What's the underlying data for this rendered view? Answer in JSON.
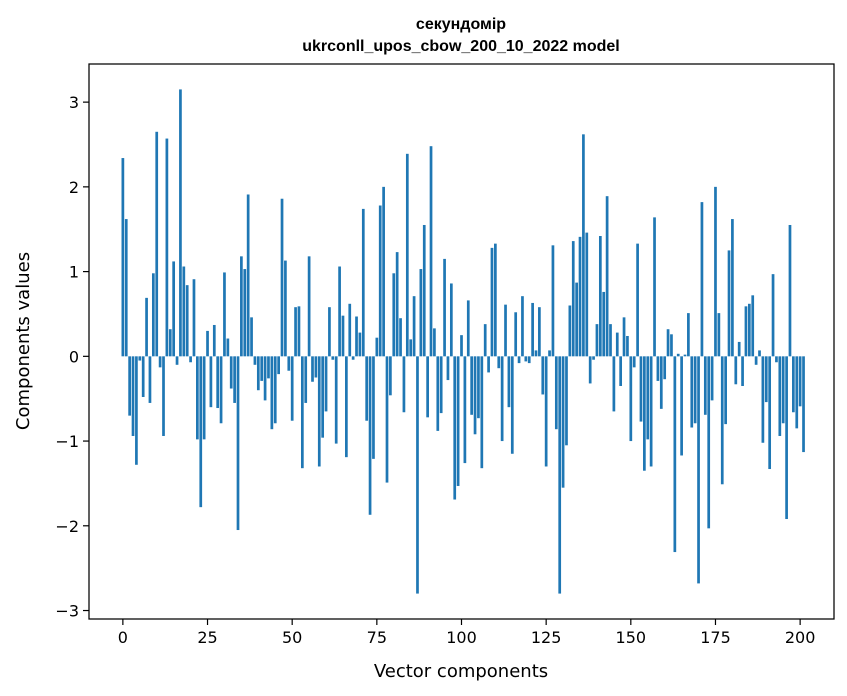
{
  "chart_data": {
    "type": "bar",
    "title": "секундомір",
    "subtitle": "ukrconll_upos_cbow_200_10_2022 model",
    "xlabel": "Vector components",
    "ylabel": "Components values",
    "xlim": [
      -10,
      210
    ],
    "ylim": [
      -3.1,
      3.45
    ],
    "xticks": [
      0,
      25,
      50,
      75,
      100,
      125,
      150,
      175,
      200
    ],
    "yticks": [
      -3,
      -2,
      -1,
      0,
      1,
      2,
      3
    ],
    "xtick_labels": [
      "0",
      "25",
      "50",
      "75",
      "100",
      "125",
      "150",
      "175",
      "200"
    ],
    "ytick_labels": [
      "−3",
      "−2",
      "−1",
      "0",
      "1",
      "2",
      "3"
    ],
    "bar_color": "#1f77b4",
    "values": [
      2.34,
      1.62,
      -0.7,
      -0.94,
      -1.28,
      -0.05,
      -0.48,
      0.69,
      -0.55,
      0.98,
      2.65,
      -0.13,
      -0.94,
      2.57,
      0.32,
      1.12,
      -0.1,
      3.15,
      1.06,
      0.84,
      -0.07,
      0.91,
      -0.98,
      -1.78,
      -0.98,
      0.3,
      -0.6,
      0.37,
      -0.61,
      -0.79,
      0.99,
      0.21,
      -0.38,
      -0.55,
      -2.05,
      1.18,
      1.03,
      1.91,
      0.46,
      -0.1,
      -0.4,
      -0.29,
      -0.52,
      -0.26,
      -0.86,
      -0.79,
      -0.21,
      1.86,
      1.13,
      -0.17,
      -0.76,
      0.58,
      0.59,
      -1.32,
      -0.55,
      1.18,
      -0.3,
      -0.25,
      -1.3,
      -0.96,
      -0.65,
      0.58,
      -0.04,
      -1.03,
      1.06,
      0.48,
      -1.19,
      0.62,
      -0.04,
      0.47,
      0.28,
      1.74,
      -0.76,
      -1.87,
      -1.21,
      0.22,
      1.78,
      2.0,
      -1.49,
      -0.46,
      0.98,
      1.23,
      0.45,
      -0.66,
      2.39,
      0.2,
      0.71,
      -2.8,
      1.03,
      1.55,
      -0.72,
      2.48,
      0.33,
      -0.88,
      -0.67,
      1.15,
      -0.28,
      0.86,
      -1.69,
      -1.53,
      0.25,
      -1.26,
      0.66,
      -0.69,
      -0.92,
      -0.73,
      -1.32,
      0.38,
      -0.19,
      1.28,
      1.33,
      -0.14,
      -1.0,
      0.61,
      -0.6,
      -1.15,
      0.52,
      -0.08,
      0.71,
      -0.06,
      -0.08,
      0.63,
      0.07,
      0.58,
      -0.45,
      -1.3,
      0.07,
      1.31,
      -0.86,
      -2.8,
      -1.55,
      -1.05,
      0.6,
      1.36,
      0.87,
      1.41,
      2.62,
      1.46,
      -0.32,
      -0.04,
      0.38,
      1.42,
      0.76,
      1.89,
      0.38,
      -0.65,
      0.28,
      -0.35,
      0.46,
      0.24,
      -1.0,
      -0.13,
      1.33,
      -0.77,
      -1.35,
      -0.98,
      -1.3,
      1.64,
      -0.29,
      -0.62,
      -0.27,
      0.32,
      0.26,
      -2.31,
      0.03,
      -1.17,
      0.02,
      0.51,
      -0.84,
      -0.79,
      -2.68,
      1.82,
      -0.69,
      -2.03,
      -0.52,
      2.0,
      0.51,
      -1.51,
      -0.8,
      1.25,
      1.62,
      -0.33,
      0.17,
      -0.35,
      0.59,
      0.62,
      0.72,
      -0.1,
      0.07,
      -1.02,
      -0.54,
      -1.33,
      0.97,
      -0.07,
      -0.94,
      -0.79,
      -1.92,
      1.55,
      -0.66,
      -0.85,
      -0.59,
      -1.13
    ]
  }
}
